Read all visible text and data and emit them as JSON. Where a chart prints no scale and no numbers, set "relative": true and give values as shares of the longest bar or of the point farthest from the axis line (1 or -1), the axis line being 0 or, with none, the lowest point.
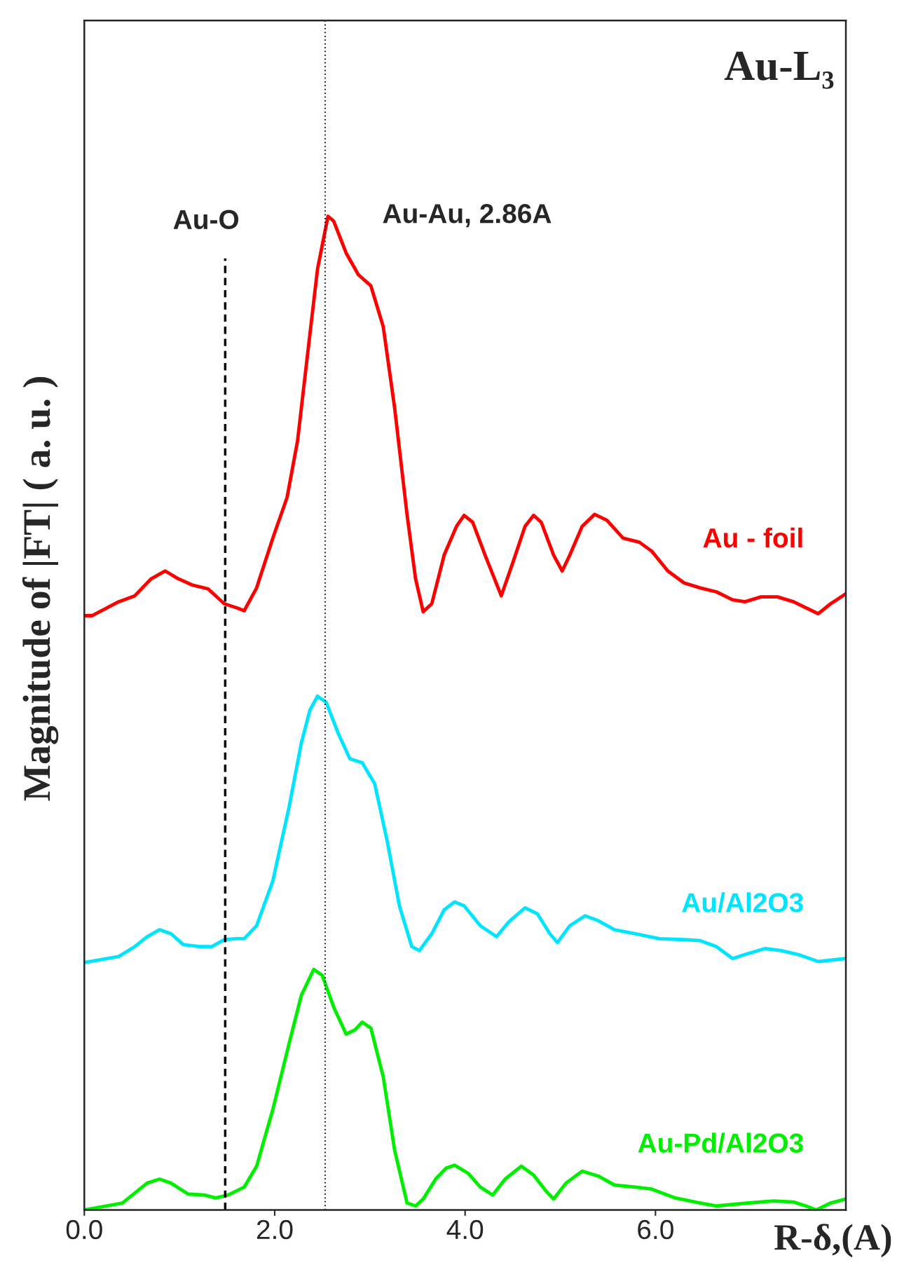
{
  "chart_data": {
    "type": "line",
    "title": "Au-L₃",
    "xlabel": "R-δ,(A)",
    "ylabel": "Magnitude of |FT| ( a. u. )",
    "relative": true,
    "xlim": [
      0,
      8
    ],
    "xticks": [
      {
        "value": 0,
        "label": "0.0"
      },
      {
        "value": 2,
        "label": "2.0"
      },
      {
        "value": 4,
        "label": "4.0"
      },
      {
        "value": 6,
        "label": "6.0"
      }
    ],
    "tick_labels": "x",
    "grid": false,
    "legend": false,
    "ref_lines": [
      {
        "axis": "x",
        "value": 1.48,
        "label": "Au-O",
        "line_style": "dashed",
        "color": "#000000"
      },
      {
        "axis": "x",
        "value": 2.53,
        "label": "Au-Au, 2.86A",
        "line_style": "dotted",
        "color": "#000000"
      }
    ],
    "series": [
      {
        "name": "Au - foil",
        "color": "#ff0000",
        "x": [
          0.0,
          0.08,
          0.36,
          0.53,
          0.7,
          0.85,
          0.99,
          1.13,
          1.3,
          1.47,
          1.6,
          1.68,
          1.81,
          1.98,
          2.13,
          2.24,
          2.35,
          2.45,
          2.56,
          2.62,
          2.75,
          2.88,
          3.01,
          3.14,
          3.26,
          3.39,
          3.48,
          3.56,
          3.65,
          3.78,
          3.91,
          3.99,
          4.08,
          4.21,
          4.38,
          4.5,
          4.63,
          4.72,
          4.8,
          4.93,
          5.02,
          5.1,
          5.23,
          5.36,
          5.49,
          5.66,
          5.83,
          5.96,
          6.13,
          6.3,
          6.47,
          6.64,
          6.81,
          6.94,
          7.11,
          7.28,
          7.45,
          7.58,
          7.71,
          7.84,
          8.0
        ],
        "values": [
          0.598,
          0.598,
          0.612,
          0.618,
          0.635,
          0.643,
          0.635,
          0.629,
          0.625,
          0.61,
          0.606,
          0.603,
          0.626,
          0.676,
          0.717,
          0.774,
          0.865,
          0.947,
          1.0,
          0.995,
          0.963,
          0.941,
          0.93,
          0.889,
          0.807,
          0.7,
          0.635,
          0.602,
          0.61,
          0.659,
          0.688,
          0.699,
          0.692,
          0.659,
          0.618,
          0.651,
          0.688,
          0.699,
          0.692,
          0.659,
          0.643,
          0.659,
          0.688,
          0.7,
          0.694,
          0.676,
          0.672,
          0.663,
          0.643,
          0.631,
          0.626,
          0.622,
          0.614,
          0.612,
          0.617,
          0.617,
          0.612,
          0.606,
          0.6,
          0.61,
          0.62
        ]
      },
      {
        "name": "Au/Al2O3",
        "color": "#00e5ff",
        "x": [
          0.0,
          0.36,
          0.53,
          0.66,
          0.79,
          0.91,
          1.04,
          1.21,
          1.34,
          1.47,
          1.6,
          1.68,
          1.81,
          1.98,
          2.15,
          2.28,
          2.37,
          2.45,
          2.54,
          2.67,
          2.79,
          2.92,
          3.05,
          3.18,
          3.31,
          3.44,
          3.52,
          3.65,
          3.78,
          3.89,
          3.99,
          4.16,
          4.33,
          4.46,
          4.63,
          4.76,
          4.89,
          4.97,
          5.1,
          5.26,
          5.4,
          5.57,
          5.79,
          6.04,
          6.3,
          6.47,
          6.64,
          6.81,
          6.94,
          7.15,
          7.32,
          7.5,
          7.71,
          8.0
        ],
        "values": [
          0.249,
          0.255,
          0.265,
          0.275,
          0.282,
          0.278,
          0.267,
          0.265,
          0.265,
          0.272,
          0.273,
          0.273,
          0.286,
          0.331,
          0.405,
          0.47,
          0.503,
          0.517,
          0.511,
          0.479,
          0.454,
          0.45,
          0.429,
          0.372,
          0.306,
          0.265,
          0.261,
          0.278,
          0.302,
          0.31,
          0.306,
          0.286,
          0.275,
          0.29,
          0.304,
          0.298,
          0.278,
          0.269,
          0.286,
          0.296,
          0.291,
          0.282,
          0.278,
          0.273,
          0.272,
          0.271,
          0.265,
          0.253,
          0.257,
          0.263,
          0.261,
          0.257,
          0.25,
          0.253
        ]
      },
      {
        "name": "Au-Pd/Al2O3",
        "color": "#00ee00",
        "x": [
          0.0,
          0.23,
          0.4,
          0.53,
          0.66,
          0.79,
          0.91,
          1.09,
          1.26,
          1.38,
          1.51,
          1.68,
          1.81,
          1.98,
          2.15,
          2.28,
          2.41,
          2.5,
          2.62,
          2.75,
          2.84,
          2.92,
          3.01,
          3.14,
          3.26,
          3.39,
          3.48,
          3.56,
          3.69,
          3.8,
          3.89,
          4.03,
          4.16,
          4.29,
          4.42,
          4.59,
          4.72,
          4.85,
          4.93,
          5.06,
          5.23,
          5.4,
          5.57,
          5.79,
          5.96,
          6.21,
          6.47,
          6.64,
          6.98,
          7.24,
          7.45,
          7.58,
          7.69,
          7.84,
          8.0
        ],
        "values": [
          0.0,
          0.004,
          0.007,
          0.017,
          0.027,
          0.031,
          0.027,
          0.016,
          0.015,
          0.012,
          0.015,
          0.023,
          0.044,
          0.101,
          0.167,
          0.216,
          0.242,
          0.236,
          0.204,
          0.177,
          0.181,
          0.189,
          0.183,
          0.134,
          0.06,
          0.007,
          0.004,
          0.011,
          0.031,
          0.042,
          0.045,
          0.037,
          0.023,
          0.015,
          0.031,
          0.044,
          0.035,
          0.019,
          0.011,
          0.027,
          0.039,
          0.034,
          0.025,
          0.023,
          0.021,
          0.012,
          0.007,
          0.004,
          0.007,
          0.009,
          0.008,
          0.004,
          0.0,
          0.007,
          0.011
        ]
      }
    ]
  }
}
